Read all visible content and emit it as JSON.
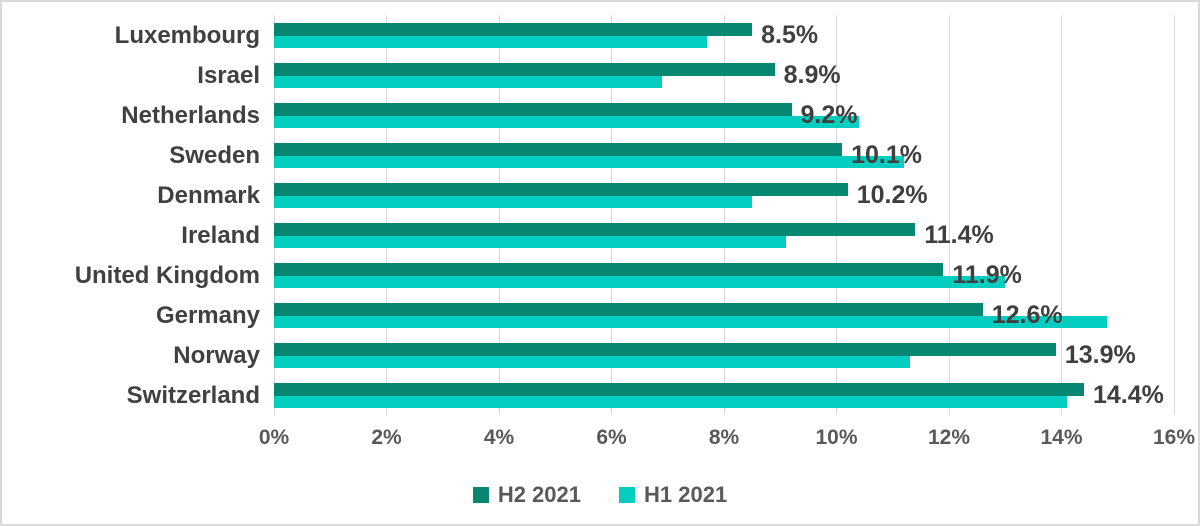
{
  "chart_data": {
    "type": "bar",
    "orientation": "horizontal",
    "title": "",
    "xlabel": "",
    "ylabel": "",
    "categories": [
      "Luxembourg",
      "Israel",
      "Netherlands",
      "Sweden",
      "Denmark",
      "Ireland",
      "United Kingdom",
      "Germany",
      "Norway",
      "Switzerland"
    ],
    "series": [
      {
        "name": "H2 2021",
        "color": "#078672",
        "values": [
          8.5,
          8.9,
          9.2,
          10.1,
          10.2,
          11.4,
          11.9,
          12.6,
          13.9,
          14.4
        ],
        "data_labels": [
          "8.5%",
          "8.9%",
          "9.2%",
          "10.1%",
          "10.2%",
          "11.4%",
          "11.9%",
          "12.6%",
          "13.9%",
          "14.4%"
        ]
      },
      {
        "name": "H1 2021",
        "color": "#05cec0",
        "values": [
          7.7,
          6.9,
          10.4,
          11.2,
          8.5,
          9.1,
          13.0,
          14.8,
          11.3,
          14.1
        ],
        "data_labels": []
      }
    ],
    "xlim": [
      0,
      16
    ],
    "x_ticks": [
      "0%",
      "2%",
      "4%",
      "6%",
      "8%",
      "10%",
      "12%",
      "14%",
      "16%"
    ],
    "grid": "vertical",
    "legend_position": "bottom-center",
    "grid_color": "#d9d9d9",
    "category_text_color": "#404040",
    "data_label_color": "#3f3f3f",
    "tick_text_color": "#595959",
    "legend_text_color": "#595959"
  }
}
